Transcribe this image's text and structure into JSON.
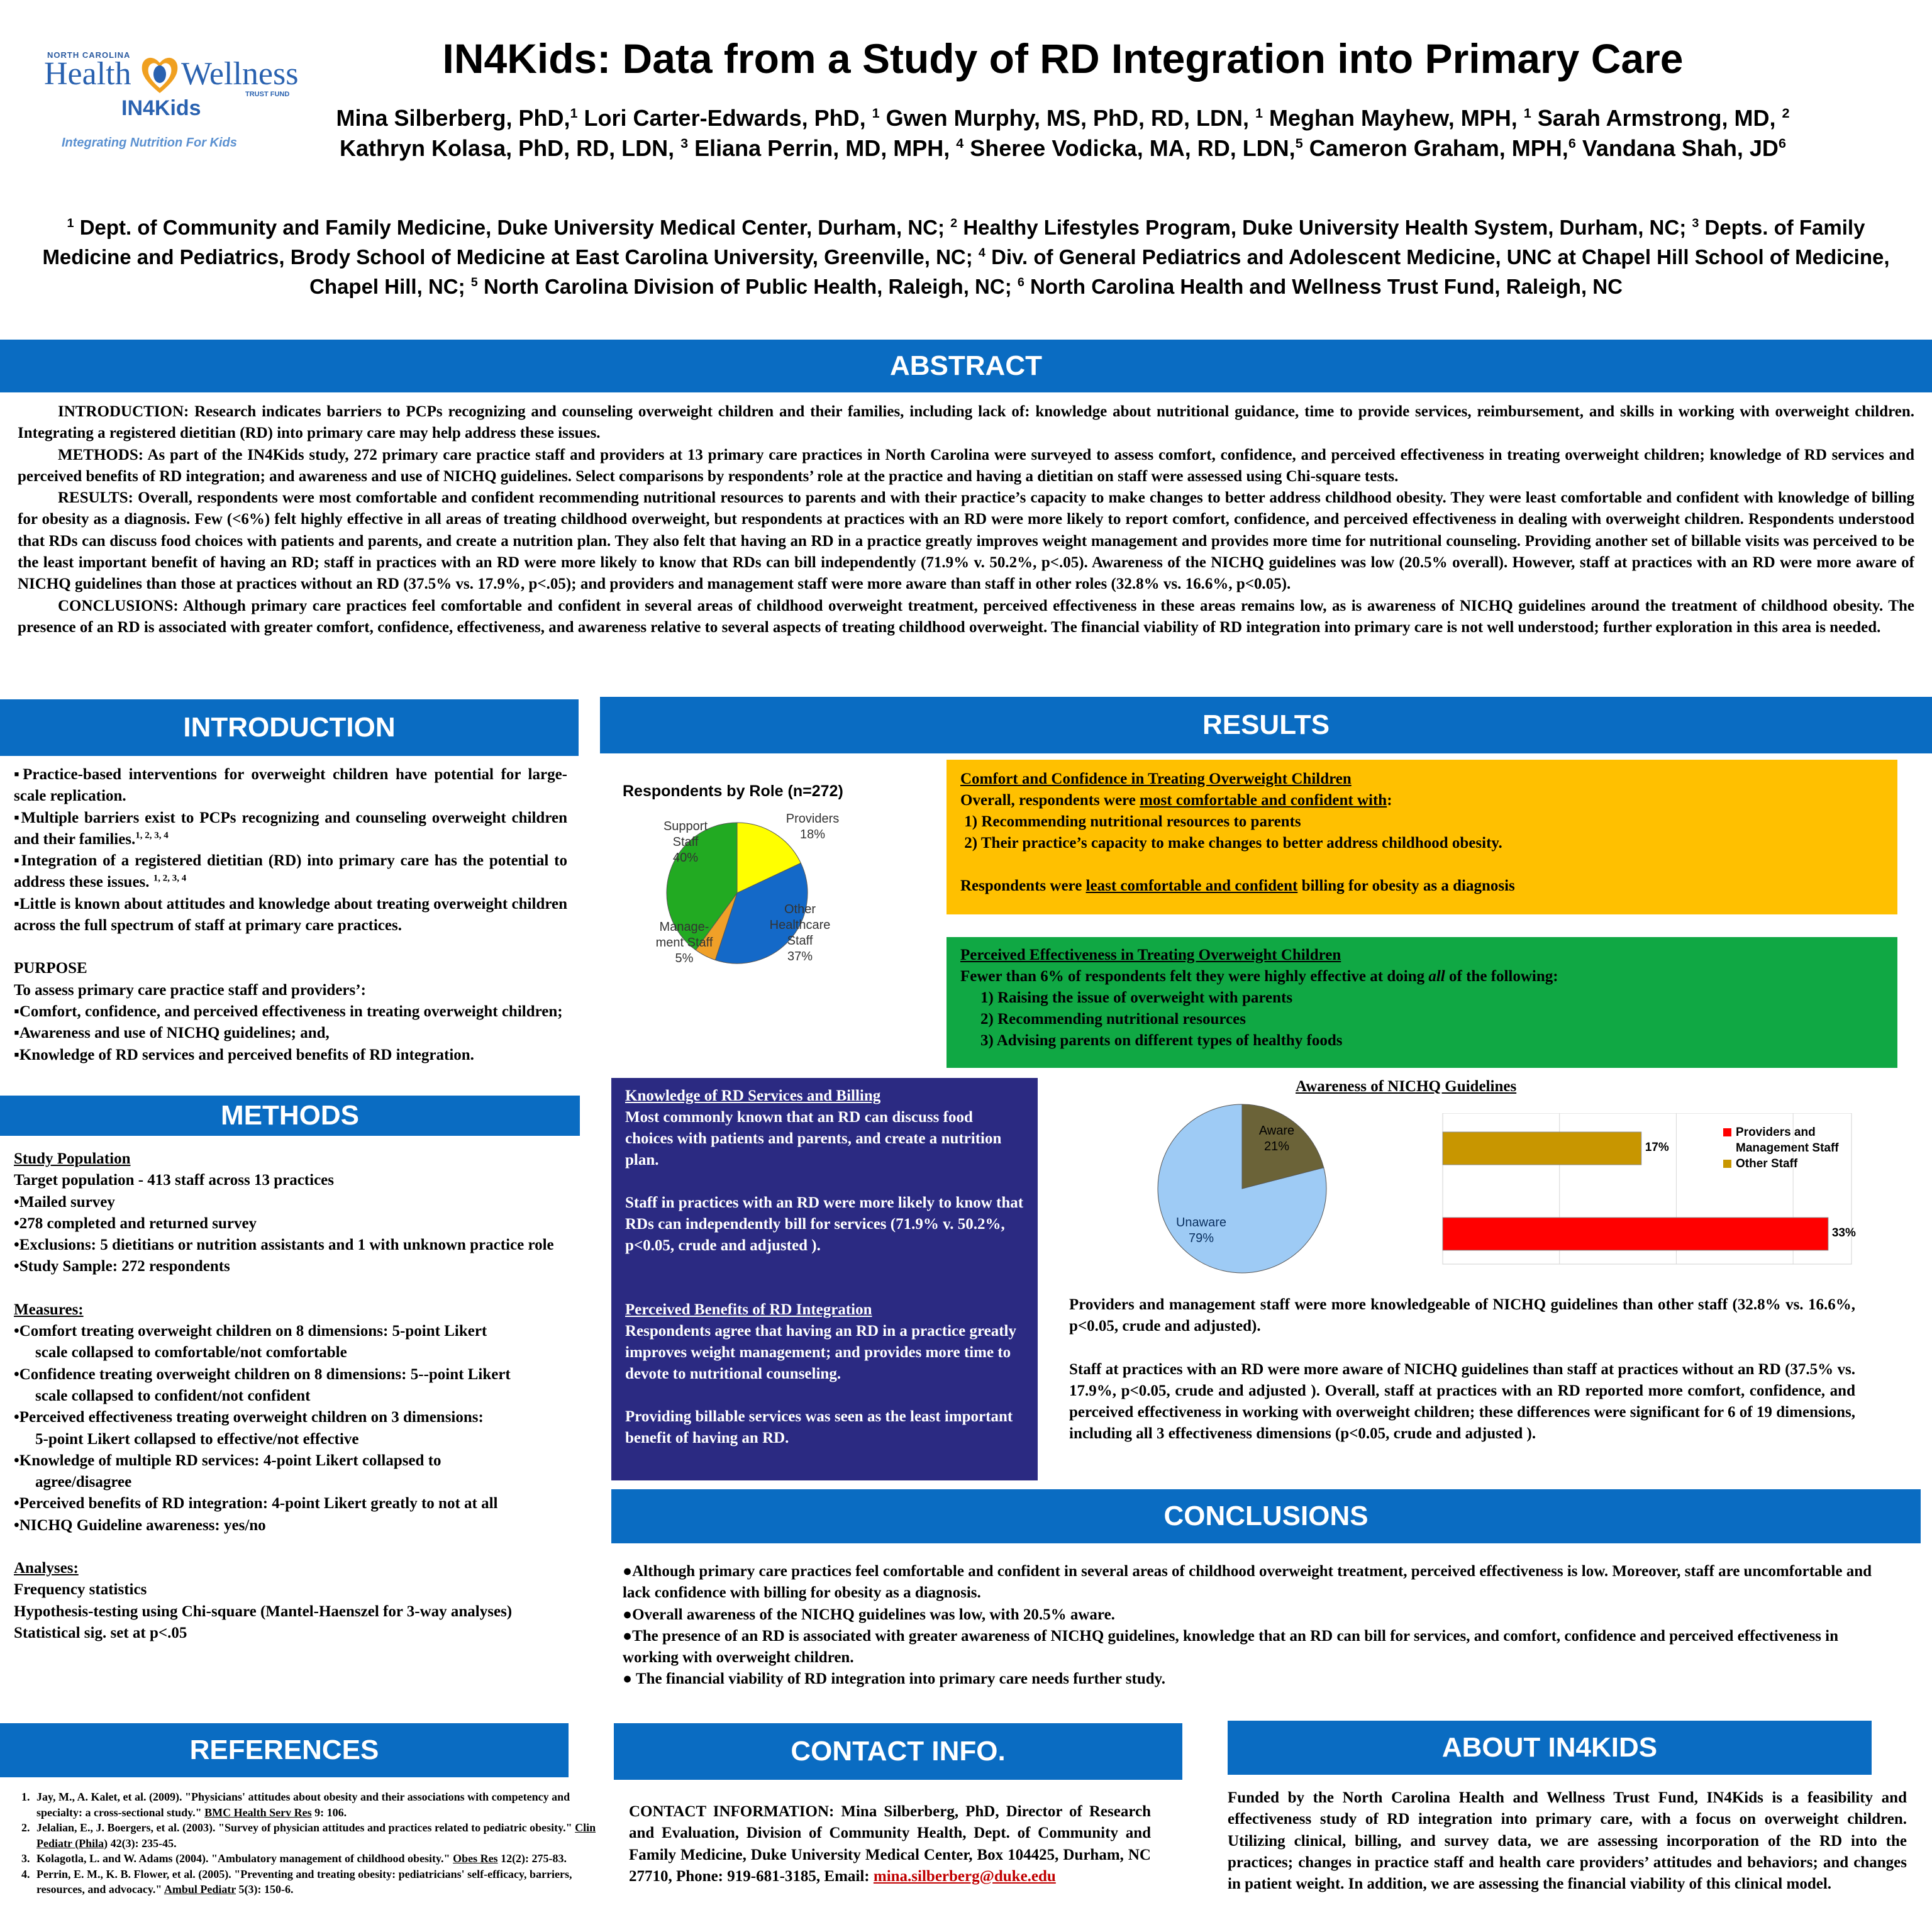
{
  "logo": {
    "state": "NORTH CAROLINA",
    "brand_left": "Health",
    "brand_right": "Wellness",
    "trust": "TRUST FUND",
    "program": "IN4Kids",
    "tagline": "Integrating Nutrition For Kids"
  },
  "header": {
    "title": "IN4Kids: Data from a Study of RD Integration into Primary Care",
    "authors_line1": [
      {
        "name": "Mina Silberberg, PhD,",
        "sup": "1"
      },
      {
        "name": " Lori Carter-Edwards, PhD, ",
        "sup": "1"
      },
      {
        "name": " Gwen Murphy, MS, PhD, RD, LDN, ",
        "sup": "1"
      },
      {
        "name": " Meghan Mayhew, MPH, ",
        "sup": "1"
      },
      {
        "name": " Sarah Armstrong, MD, ",
        "sup": "2"
      }
    ],
    "authors_line2": [
      {
        "name": "Kathryn Kolasa, PhD, RD, LDN, ",
        "sup": "3"
      },
      {
        "name": " Eliana Perrin, MD, MPH, ",
        "sup": "4"
      },
      {
        "name": " Sheree Vodicka, MA, RD, LDN,",
        "sup": "5"
      },
      {
        "name": " Cameron Graham, MPH,",
        "sup": "6"
      },
      {
        "name": " Vandana Shah, JD",
        "sup": "6"
      }
    ],
    "affiliations": [
      {
        "sup": "1",
        "text": " Dept. of Community and Family Medicine, Duke University Medical Center, Durham, NC; "
      },
      {
        "sup": "2",
        "text": " Healthy Lifestyles Program, Duke University Health System, Durham, NC; "
      },
      {
        "sup": "3",
        "text": " Depts. of Family Medicine and Pediatrics, Brody School of Medicine at East Carolina University, Greenville, NC; "
      },
      {
        "sup": "4",
        "text": " Div. of General Pediatrics and Adolescent Medicine, UNC at Chapel Hill School of Medicine, Chapel Hill, NC; "
      },
      {
        "sup": "5",
        "text": " North Carolina Division of Public Health, Raleigh, NC; "
      },
      {
        "sup": "6",
        "text": " North Carolina Health and Wellness Trust Fund, Raleigh, NC"
      }
    ]
  },
  "abstract": {
    "heading": "ABSTRACT",
    "paragraphs": [
      "INTRODUCTION: Research indicates barriers to PCPs recognizing and counseling overweight children and their families, including lack of:  knowledge about nutritional guidance, time to provide services, reimbursement, and skills in working with overweight children. Integrating a registered dietitian (RD) into primary care may help address these issues.",
      "METHODS: As part of the IN4Kids study, 272 primary care practice staff and providers at 13 primary care practices in North Carolina were surveyed to assess comfort, confidence, and perceived effectiveness in treating overweight children; knowledge of RD services and perceived benefits of RD integration; and awareness and use of NICHQ guidelines. Select comparisons by respondents’ role at the practice and having a dietitian on staff were assessed using Chi-square tests.",
      "RESULTS: Overall, respondents were most comfortable and confident recommending nutritional resources to parents and with their practice’s capacity to make changes to better address childhood obesity.  They were least comfortable and confident with knowledge of billing for obesity as a diagnosis. Few (<6%) felt highly effective in all areas of treating childhood overweight, but respondents at practices with an RD were more likely to report comfort, confidence, and perceived effectiveness in dealing with overweight children.  Respondents understood that RDs can discuss food choices with patients and parents, and create a nutrition plan. They also felt that having an RD in a practice greatly improves weight management and provides more time for nutritional counseling. Providing another set of billable visits was perceived to be the least important benefit of having an RD; staff in practices with an RD were more likely to know that RDs can bill independently (71.9% v. 50.2%, p<.05). Awareness of the NICHQ guidelines was low (20.5% overall). However, staff at practices with an RD were more aware of NICHQ guidelines than those at practices without an RD (37.5% vs. 17.9%, p<.05); and providers and management staff were more aware than staff in other roles (32.8% vs. 16.6%, p<0.05).",
      "CONCLUSIONS: Although primary care practices feel comfortable and confident in several areas of childhood overweight treatment, perceived effectiveness in these areas remains low, as is awareness of NICHQ guidelines around the treatment of childhood obesity. The presence of an RD is associated with greater comfort, confidence, effectiveness, and awareness relative to several aspects of treating childhood overweight. The financial viability of RD integration into primary care is not well understood; further exploration in this area is needed."
    ]
  },
  "introduction": {
    "heading": "INTRODUCTION",
    "bullets": [
      {
        "text": "▪Practice-based interventions for overweight children have potential for large-scale replication.",
        "sup": ""
      },
      {
        "text": "▪Multiple barriers exist to PCPs recognizing and counseling overweight children and their families.",
        "sup": "1, 2, 3, 4"
      },
      {
        "text": "▪Integration of a registered dietitian (RD) into primary care has the potential to address these issues. ",
        "sup": "1, 2, 3, 4"
      },
      {
        "text": "▪Little is known about attitudes and knowledge about treating overweight children across the full spectrum of staff at primary care practices.",
        "sup": ""
      }
    ],
    "purpose_heading": "PURPOSE",
    "purpose_intro": "To assess primary care practice staff and providers’:",
    "purpose_items": [
      "▪Comfort, confidence, and perceived effectiveness in treating overweight children;",
      "▪Awareness and use of NICHQ guidelines; and,",
      "▪Knowledge of RD services and perceived benefits of RD integration."
    ]
  },
  "methods": {
    "heading": "METHODS",
    "study_heading": "Study Population",
    "study_lines": [
      "Target population - 413 staff across 13 practices",
      "•Mailed survey",
      "•278 completed and returned survey",
      "•Exclusions:  5 dietitians or nutrition assistants and 1 with unknown practice role",
      "•Study Sample: 272 respondents"
    ],
    "measures_heading": "Measures:",
    "measures": [
      {
        "main": "•Comfort treating overweight children on 8 dimensions: 5-point Likert",
        "cont": "scale collapsed to comfortable/not comfortable"
      },
      {
        "main": "•Confidence treating overweight children on 8 dimensions: 5--point Likert",
        "cont": "scale collapsed to confident/not confident"
      },
      {
        "main": "•Perceived effectiveness treating overweight children on 3 dimensions:",
        "cont": "5-point Likert collapsed to effective/not effective"
      },
      {
        "main": "•Knowledge of multiple RD services: 4-point Likert collapsed to",
        "cont": "agree/disagree"
      },
      {
        "main": "•Perceived benefits of RD integration: 4-point Likert greatly to not at all",
        "cont": ""
      },
      {
        "main": "•NICHQ Guideline awareness: yes/no",
        "cont": ""
      }
    ],
    "analyses_heading": "Analyses:",
    "analyses": [
      "Frequency statistics",
      "Hypothesis-testing using Chi-square (Mantel-Haenszel for 3-way analyses)",
      "Statistical sig. set at p<.05"
    ]
  },
  "results": {
    "heading": "RESULTS",
    "comfort_box": {
      "title": "Comfort and Confidence in Treating Overweight Children",
      "line1_pre": "Overall, respondents were ",
      "line1_ul": "most comfortable and confident with",
      "line1_post": ":",
      "items": [
        " 1) Recommending nutritional resources to parents",
        " 2) Their practice’s capacity to make changes to better address childhood obesity."
      ],
      "last_pre": "Respondents were ",
      "last_ul": "least comfortable and confident",
      "last_post": " billing for obesity as a diagnosis"
    },
    "effect_box": {
      "title": "Perceived Effectiveness in Treating Overweight Children",
      "line1_pre": "Fewer than 6% of respondents felt they were highly effective at doing ",
      "line1_em": "all",
      "line1_post": " of the following:",
      "items": [
        "1) Raising the issue of overweight with parents",
        "2) Recommending nutritional resources",
        "3) Advising parents on different types of healthy foods"
      ]
    },
    "knowledge_box": {
      "title1": "Knowledge of RD Services and Billing",
      "para1": "Most commonly known that an RD can discuss food choices with patients and parents, and create a nutrition plan.",
      "para2": "Staff in practices with an RD were more likely  to know that RDs can independently bill for services (71.9% v. 50.2%, p<0.05, crude and adjusted ).",
      "title2": "Perceived Benefits of RD Integration",
      "para3": "Respondents agree that having an RD in a practice greatly improves weight management; and provides more time to devote to nutritional counseling.",
      "para4": "Providing billable services was seen as the least important benefit of having an RD."
    },
    "nichq_title": "Awareness of NICHQ Guidelines",
    "nichq_text1": "Providers and management staff were more knowledgeable of NICHQ guidelines than other staff (32.8% vs. 16.6%, p<0.05, crude and adjusted).",
    "nichq_text2": "Staff at practices with an RD were more aware of NICHQ guidelines than staff at practices without an RD (37.5% vs. 17.9%, p<0.05, crude and adjusted ).  Overall, staff at practices with an RD reported more comfort, confidence, and perceived effectiveness in working with overweight children; these differences were significant for 6 of 19 dimensions, including all 3 effectiveness dimensions (p<0.05, crude and adjusted )."
  },
  "chart_data": [
    {
      "type": "pie",
      "title": "Respondents by Role (n=272)",
      "categories": [
        "Providers",
        "Other Healthcare Staff",
        "Management Staff",
        "Support Staff"
      ],
      "values": [
        18,
        37,
        5,
        40
      ],
      "labels": [
        [
          "Providers",
          "18%"
        ],
        [
          "Other",
          "Healthcare",
          "Staff",
          "37%"
        ],
        [
          "Manage-",
          "ment Staff",
          "5%"
        ],
        [
          "Support",
          "Staff",
          "40%"
        ]
      ],
      "colors": [
        "#ffff00",
        "#1469c8",
        "#f0a028",
        "#22aa22"
      ]
    },
    {
      "type": "pie",
      "title": "",
      "categories": [
        "Aware",
        "Unaware"
      ],
      "values": [
        21,
        79
      ],
      "labels": [
        [
          "Aware",
          "21%"
        ],
        [
          "Unaware",
          "79%"
        ]
      ],
      "colors": [
        "#6b6338",
        "#9ecbf5"
      ]
    },
    {
      "type": "bar",
      "orientation": "horizontal",
      "series": [
        {
          "name": "Providers and Management Staff",
          "values": [
            33
          ],
          "label": "33%",
          "color": "#ff0000"
        },
        {
          "name": "Other Staff",
          "values": [
            17
          ],
          "label": "17%",
          "color": "#c89600"
        }
      ],
      "legend": [
        "Providers and",
        "Management Staff",
        "Other Staff"
      ],
      "xlim": [
        0,
        35
      ],
      "grid": true,
      "legend_position": "right"
    }
  ],
  "conclusions": {
    "heading": "CONCLUSIONS",
    "bullets": [
      "●Although primary care practices feel comfortable and confident in several areas of childhood overweight treatment, perceived effectiveness is low. Moreover, staff are uncomfortable and lack confidence with billing for obesity as a diagnosis.",
      "●Overall awareness of the NICHQ guidelines was low, with 20.5% aware.",
      "●The presence of an RD is associated with greater awareness of NICHQ guidelines, knowledge that an RD can bill for services, and comfort, confidence and perceived effectiveness in working with overweight children.",
      "● The financial viability of RD integration into primary care needs further study."
    ]
  },
  "references": {
    "heading": "REFERENCES",
    "items": [
      {
        "pre": "Jay, M., A. Kalet, et al. (2009). \"Physicians' attitudes about obesity and their associations with competency and specialty: a cross-sectional study.\" ",
        "journal": "BMC Health Serv Res",
        "post": " 9: 106."
      },
      {
        "pre": "Jelalian, E., J. Boergers, et al. (2003). \"Survey of physician attitudes and practices related to pediatric obesity.\" ",
        "journal": "Clin Pediatr (Phila)",
        "post": " 42(3): 235-45."
      },
      {
        "pre": "Kolagotla, L. and W. Adams (2004). \"Ambulatory management of childhood obesity.\" ",
        "journal": "Obes Res",
        "post": " 12(2): 275-83."
      },
      {
        "pre": "Perrin, E. M., K. B. Flower, et al. (2005). \"Preventing and treating obesity: pediatricians' self-efficacy, barriers, resources, and advocacy.\" ",
        "journal": "Ambul Pediatr",
        "post": " 5(3): 150-6."
      }
    ]
  },
  "contact": {
    "heading": "CONTACT INFO.",
    "text": "CONTACT INFORMATION:  Mina Silberberg, PhD, Director of Research and Evaluation, Division of Community Health, Dept. of Community and Family Medicine, Duke University Medical Center, Box 104425, Durham, NC 27710, Phone: 919-681-3185, Email: ",
    "email": "mina.silberberg@duke.edu"
  },
  "about": {
    "heading": "ABOUT IN4KIDS",
    "text": "Funded by the North Carolina Health and Wellness Trust Fund, IN4Kids is a feasibility and effectiveness study of RD integration into primary care, with a focus on overweight children. Utilizing clinical, billing, and survey data, we are assessing incorporation of the RD into the practices; changes in practice staff and health care providers’ attitudes and behaviors; and changes in patient weight.  In addition, we are assessing the financial viability of this clinical model."
  }
}
